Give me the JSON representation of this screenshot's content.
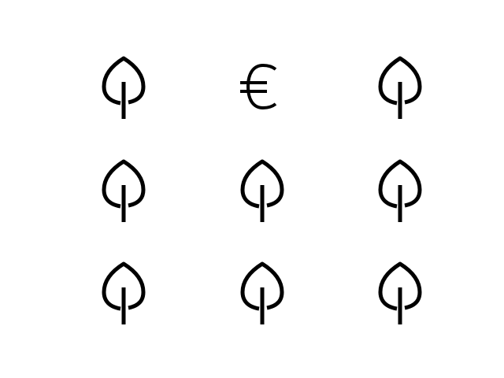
{
  "grid": {
    "rows": 3,
    "columns": 3,
    "icons": [
      "leaf-icon",
      "euro-icon",
      "leaf-icon",
      "leaf-icon",
      "leaf-icon",
      "leaf-icon",
      "leaf-icon",
      "leaf-icon",
      "leaf-icon"
    ]
  },
  "colors": {
    "background": "#ffffff",
    "icon": "#000000"
  }
}
